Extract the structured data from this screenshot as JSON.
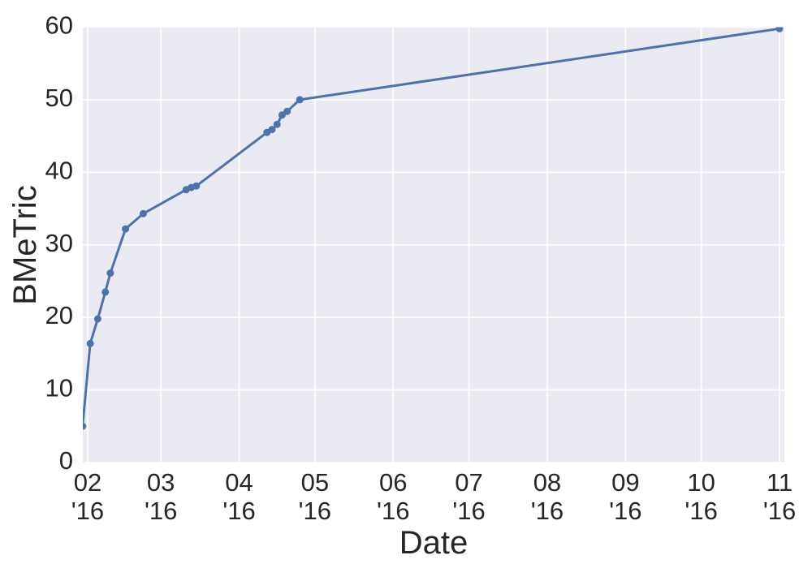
{
  "chart_data": {
    "type": "line",
    "title": "",
    "xlabel": "Date",
    "ylabel": "BMeTric",
    "grid": "on",
    "legend": "none",
    "ylim": [
      0,
      60
    ],
    "xlim": [
      "2016-01-30T02:00:00Z",
      "2016-11-02T22:00:00Z"
    ],
    "y_ticks": [
      0,
      10,
      20,
      30,
      40,
      50,
      60
    ],
    "x_ticks": [
      {
        "month": "02",
        "year": "'16",
        "date": "2016-02-01"
      },
      {
        "month": "03",
        "year": "'16",
        "date": "2016-03-01"
      },
      {
        "month": "04",
        "year": "'16",
        "date": "2016-04-01"
      },
      {
        "month": "05",
        "year": "'16",
        "date": "2016-05-01"
      },
      {
        "month": "06",
        "year": "'16",
        "date": "2016-06-01"
      },
      {
        "month": "07",
        "year": "'16",
        "date": "2016-07-01"
      },
      {
        "month": "08",
        "year": "'16",
        "date": "2016-08-01"
      },
      {
        "month": "09",
        "year": "'16",
        "date": "2016-09-01"
      },
      {
        "month": "10",
        "year": "'16",
        "date": "2016-10-01"
      },
      {
        "month": "11",
        "year": "'16",
        "date": "2016-11-01"
      }
    ],
    "series": [
      {
        "name": "BMeTric",
        "marker": "circle",
        "points": [
          {
            "date": "2016-01-30",
            "value": 5.0
          },
          {
            "date": "2016-02-02",
            "value": 16.4
          },
          {
            "date": "2016-02-05",
            "value": 19.8
          },
          {
            "date": "2016-02-08",
            "value": 23.5
          },
          {
            "date": "2016-02-10",
            "value": 26.1
          },
          {
            "date": "2016-02-16",
            "value": 32.2
          },
          {
            "date": "2016-02-23",
            "value": 34.3
          },
          {
            "date": "2016-03-11",
            "value": 37.6
          },
          {
            "date": "2016-03-13",
            "value": 37.9
          },
          {
            "date": "2016-03-15",
            "value": 38.1
          },
          {
            "date": "2016-04-12",
            "value": 45.5
          },
          {
            "date": "2016-04-14",
            "value": 45.9
          },
          {
            "date": "2016-04-16",
            "value": 46.6
          },
          {
            "date": "2016-04-18",
            "value": 47.9
          },
          {
            "date": "2016-04-20",
            "value": 48.4
          },
          {
            "date": "2016-04-25",
            "value": 50.0
          },
          {
            "date": "2016-11-01",
            "value": 59.8
          }
        ]
      }
    ],
    "colors": {
      "line": "#4C72B0",
      "marker": "#4C72B0",
      "plot_background": "#EAEAF2",
      "grid": "#FFFFFF",
      "text": "#262626",
      "figure_background": "#FFFFFF"
    }
  }
}
